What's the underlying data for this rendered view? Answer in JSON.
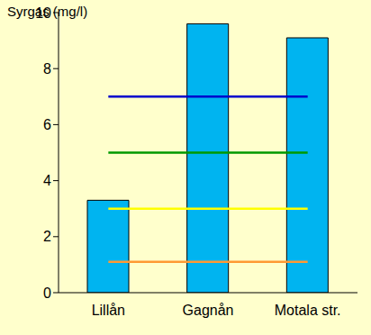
{
  "chart_data": {
    "type": "bar",
    "y_label": "Syrgas (mg/l)",
    "categories": [
      "Lillån",
      "Gagnån",
      "Motala str."
    ],
    "values": [
      3.3,
      9.6,
      9.1
    ],
    "color": "#00b4f0",
    "ylim": [
      0,
      10
    ],
    "yticks": [
      0,
      2,
      4,
      6,
      8,
      10
    ],
    "grid": false,
    "reference_lines": [
      {
        "y": 7,
        "color": "#0000cc"
      },
      {
        "y": 5,
        "color": "#009900"
      },
      {
        "y": 3,
        "color": "#ffff00"
      },
      {
        "y": 1.1,
        "color": "#ff9933"
      }
    ]
  }
}
